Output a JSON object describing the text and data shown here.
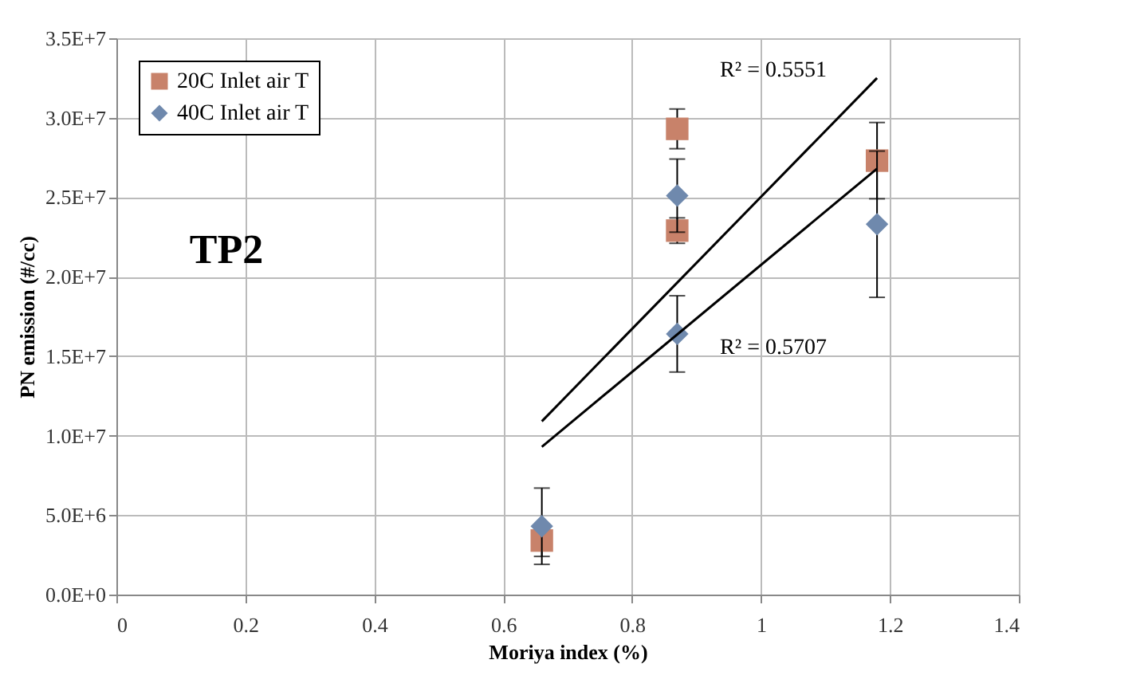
{
  "chart_data": {
    "type": "scatter",
    "xlabel": "Moriya index (%)",
    "ylabel": "PN emission (#/cc)",
    "xlim": [
      0,
      1.4
    ],
    "xticks": [
      0,
      0.2,
      0.4,
      0.6,
      0.8,
      1,
      1.2,
      1.4
    ],
    "ylim": [
      0,
      35000000
    ],
    "yticks": [
      {
        "value": 0,
        "label": "0.0E+0"
      },
      {
        "value": 5000000,
        "label": "5.0E+6"
      },
      {
        "value": 10000000,
        "label": "1.0E+7"
      },
      {
        "value": 15000000,
        "label": "1.5E+7"
      },
      {
        "value": 20000000,
        "label": "2.0E+7"
      },
      {
        "value": 25000000,
        "label": "2.5E+7"
      },
      {
        "value": 30000000,
        "label": "3.0E+7"
      },
      {
        "value": 35000000,
        "label": "3.5E+7"
      }
    ],
    "grid": true,
    "legend": "top left",
    "series": [
      {
        "name": "20C Inlet air T",
        "color": "#c8826a",
        "marker": "square",
        "x": [
          0.66,
          0.87,
          0.87,
          1.18
        ],
        "values": [
          3400000,
          29300000,
          22900000,
          27300000
        ],
        "errors": [
          1000000,
          1250000,
          800000,
          2400000
        ]
      },
      {
        "name": "40C Inlet air T",
        "color": "#6f89ad",
        "marker": "diamond",
        "x": [
          0.66,
          0.87,
          0.87,
          1.18
        ],
        "values": [
          4300000,
          25100000,
          16400000,
          23300000
        ],
        "errors": [
          2400000,
          2300000,
          2400000,
          4600000
        ]
      },
      {
        "type": "line",
        "color": "#000000",
        "x": [
          0.66,
          1.18
        ],
        "values": [
          10900000,
          32500000
        ]
      },
      {
        "type": "line",
        "color": "#000000",
        "x": [
          0.66,
          1.18
        ],
        "values": [
          9300000,
          26800000
        ]
      }
    ],
    "annotations": [
      "R² = 0.5551",
      "R² = 0.5707",
      "TP2"
    ]
  }
}
